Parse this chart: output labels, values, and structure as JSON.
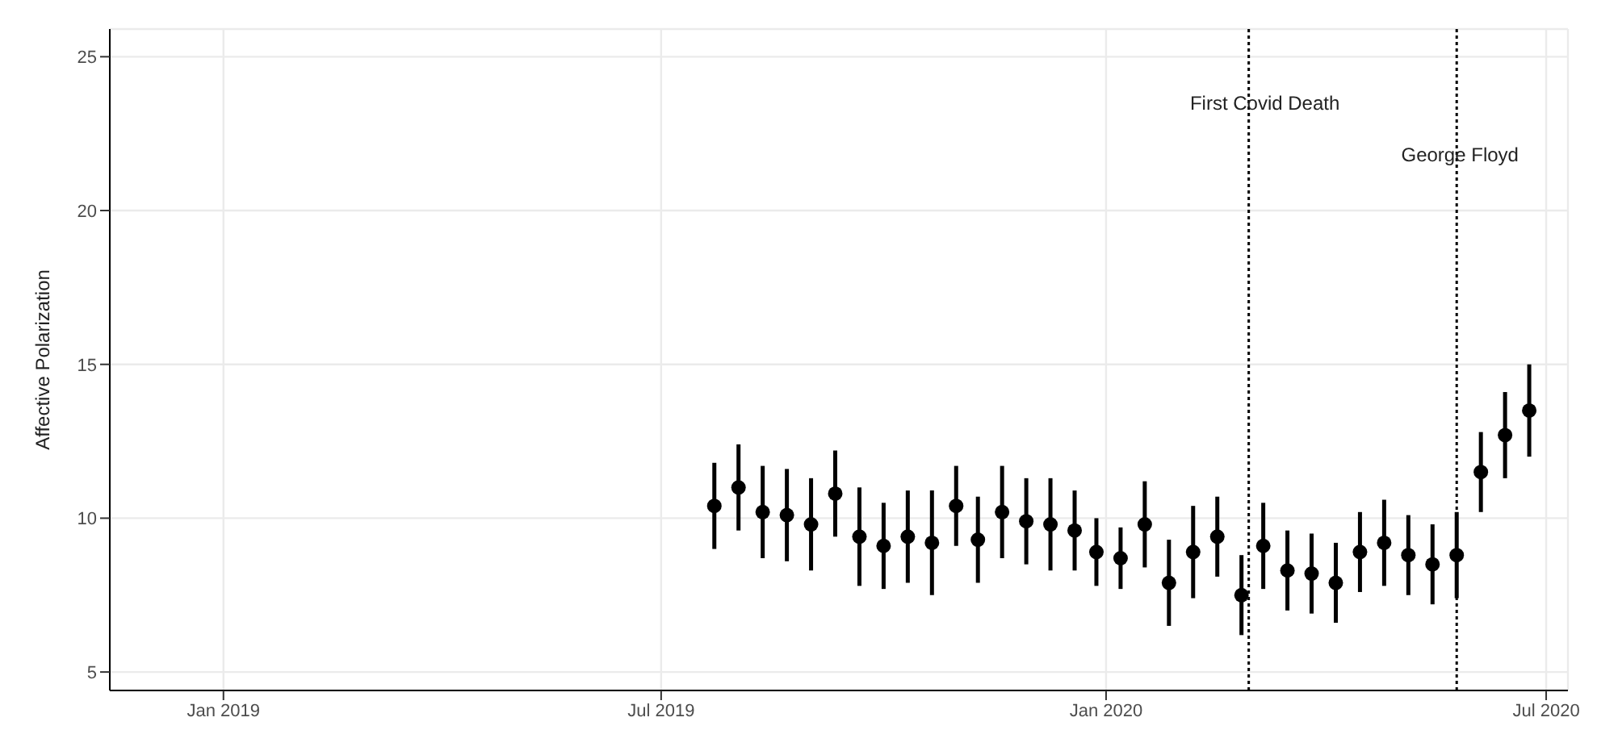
{
  "chart_data": {
    "type": "scatter",
    "ylabel": "Affective Polarization",
    "x": [
      "2019-07-23",
      "2019-08-02",
      "2019-08-12",
      "2019-08-22",
      "2019-09-01",
      "2019-09-11",
      "2019-09-21",
      "2019-10-01",
      "2019-10-11",
      "2019-10-21",
      "2019-10-31",
      "2019-11-09",
      "2019-11-19",
      "2019-11-29",
      "2019-12-09",
      "2019-12-19",
      "2019-12-28",
      "2020-01-07",
      "2020-01-17",
      "2020-01-27",
      "2020-02-06",
      "2020-02-16",
      "2020-02-26",
      "2020-03-06",
      "2020-03-16",
      "2020-03-26",
      "2020-04-05",
      "2020-04-15",
      "2020-04-25",
      "2020-05-05",
      "2020-05-15",
      "2020-05-25",
      "2020-06-04",
      "2020-06-14",
      "2020-06-24"
    ],
    "series": [
      {
        "color": "#000000",
        "values": [
          10.4,
          11.0,
          10.2,
          10.1,
          9.8,
          10.8,
          9.4,
          9.1,
          9.4,
          9.2,
          10.4,
          9.3,
          10.2,
          9.9,
          9.8,
          9.6,
          8.9,
          8.7,
          9.8,
          7.9,
          8.9,
          9.4,
          7.5,
          9.1,
          8.3,
          8.2,
          7.9,
          8.9,
          9.2,
          8.8,
          8.5,
          8.8,
          11.5,
          12.7,
          13.5
        ],
        "errors": [
          1.4,
          1.4,
          1.5,
          1.5,
          1.5,
          1.4,
          1.6,
          1.4,
          1.5,
          1.7,
          1.3,
          1.4,
          1.5,
          1.4,
          1.5,
          1.3,
          1.1,
          1.0,
          1.4,
          1.4,
          1.5,
          1.3,
          1.3,
          1.4,
          1.3,
          1.3,
          1.3,
          1.3,
          1.4,
          1.3,
          1.3,
          1.4,
          1.3,
          1.4,
          1.5
        ]
      }
    ],
    "xlim": [
      "2018-11-15",
      "2020-07-10"
    ],
    "xticks": [
      {
        "value": "2019-01-01",
        "label": "Jan 2019"
      },
      {
        "value": "2019-07-01",
        "label": "Jul 2019"
      },
      {
        "value": "2020-01-01",
        "label": "Jan 2020"
      },
      {
        "value": "2020-07-01",
        "label": "Jul 2020"
      }
    ],
    "ylim": [
      4.4,
      25.9
    ],
    "yticks": [
      5,
      10,
      15,
      20,
      25
    ],
    "grid": true,
    "marker": "circle",
    "ref_lines": [
      {
        "axis": "x",
        "value": "2020-02-29",
        "label": "First Covid Death",
        "color": "#000000",
        "line_style": "dotted"
      },
      {
        "axis": "x",
        "value": "2020-05-25",
        "label": "George Floyd",
        "color": "#000000",
        "line_style": "dotted"
      }
    ]
  }
}
